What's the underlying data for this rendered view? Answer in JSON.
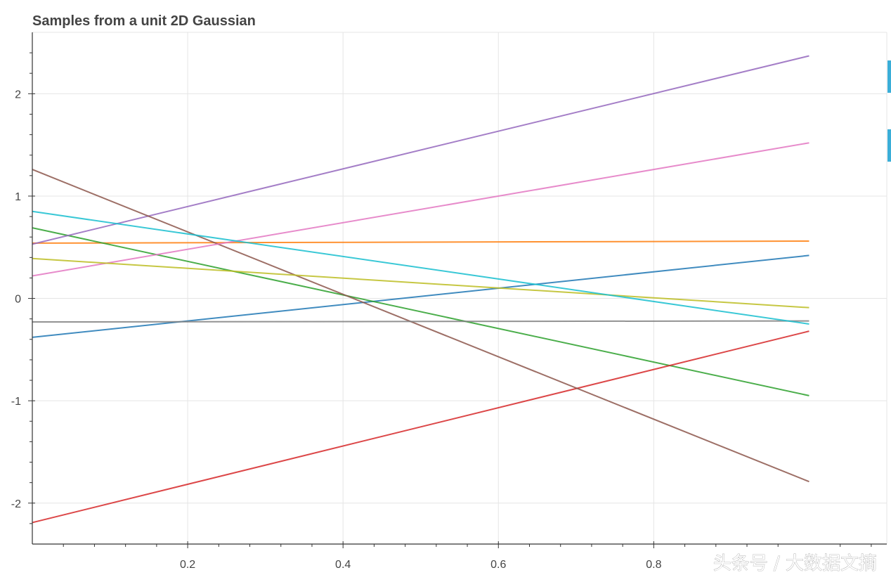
{
  "chart_data": {
    "type": "line",
    "title": "Samples from a unit 2D Gaussian",
    "xlabel": "",
    "ylabel": "",
    "xlim": [
      0.0,
      1.1
    ],
    "ylim": [
      -2.4,
      2.6
    ],
    "grid": true,
    "legend": "none",
    "x_ticks": [
      0.2,
      0.4,
      0.6,
      0.8
    ],
    "x_tick_labels": [
      "0.2",
      "0.4",
      "0.6",
      "0.8"
    ],
    "y_ticks": [
      2,
      1,
      0,
      -1,
      -2
    ],
    "y_tick_labels": [
      "2",
      "1",
      "0",
      "-1",
      "-2"
    ],
    "x_minor_ticks": [
      0.04,
      0.08,
      0.12,
      0.16,
      0.24,
      0.28,
      0.32,
      0.36,
      0.44,
      0.48,
      0.52,
      0.56,
      0.64,
      0.68,
      0.72,
      0.76,
      0.84,
      0.88,
      0.92,
      0.96,
      1.04,
      1.08
    ],
    "y_minor_ticks": [
      2.4,
      2.2,
      1.8,
      1.6,
      1.4,
      1.2,
      0.8,
      0.6,
      0.4,
      0.2,
      -0.2,
      -0.4,
      -0.6,
      -0.8,
      -1.2,
      -1.4,
      -1.6,
      -1.8,
      -2.2
    ],
    "series": [
      {
        "color": "#1f77b4",
        "x": [
          0.0,
          1.0
        ],
        "y": [
          -0.38,
          0.42
        ]
      },
      {
        "color": "#ff7f0e",
        "x": [
          0.0,
          1.0
        ],
        "y": [
          0.54,
          0.56
        ]
      },
      {
        "color": "#2ca02c",
        "x": [
          0.0,
          1.0
        ],
        "y": [
          0.69,
          -0.95
        ]
      },
      {
        "color": "#d62728",
        "x": [
          0.0,
          1.0
        ],
        "y": [
          -2.19,
          -0.32
        ]
      },
      {
        "color": "#9467bd",
        "x": [
          0.0,
          1.0
        ],
        "y": [
          0.53,
          2.37
        ]
      },
      {
        "color": "#8c564b",
        "x": [
          0.0,
          1.0
        ],
        "y": [
          1.26,
          -1.79
        ]
      },
      {
        "color": "#e377c2",
        "x": [
          0.0,
          1.0
        ],
        "y": [
          0.22,
          1.52
        ]
      },
      {
        "color": "#7f7f7f",
        "x": [
          0.0,
          1.0
        ],
        "y": [
          -0.23,
          -0.22
        ]
      },
      {
        "color": "#bcbd22",
        "x": [
          0.0,
          1.0
        ],
        "y": [
          0.39,
          -0.09
        ]
      },
      {
        "color": "#17becf",
        "x": [
          0.0,
          1.0
        ],
        "y": [
          0.85,
          -0.25
        ]
      }
    ]
  },
  "toolbar": {
    "color": "#3aaed8",
    "tabs": 2
  },
  "watermark": {
    "text": "头条号 / 大数据文摘"
  }
}
